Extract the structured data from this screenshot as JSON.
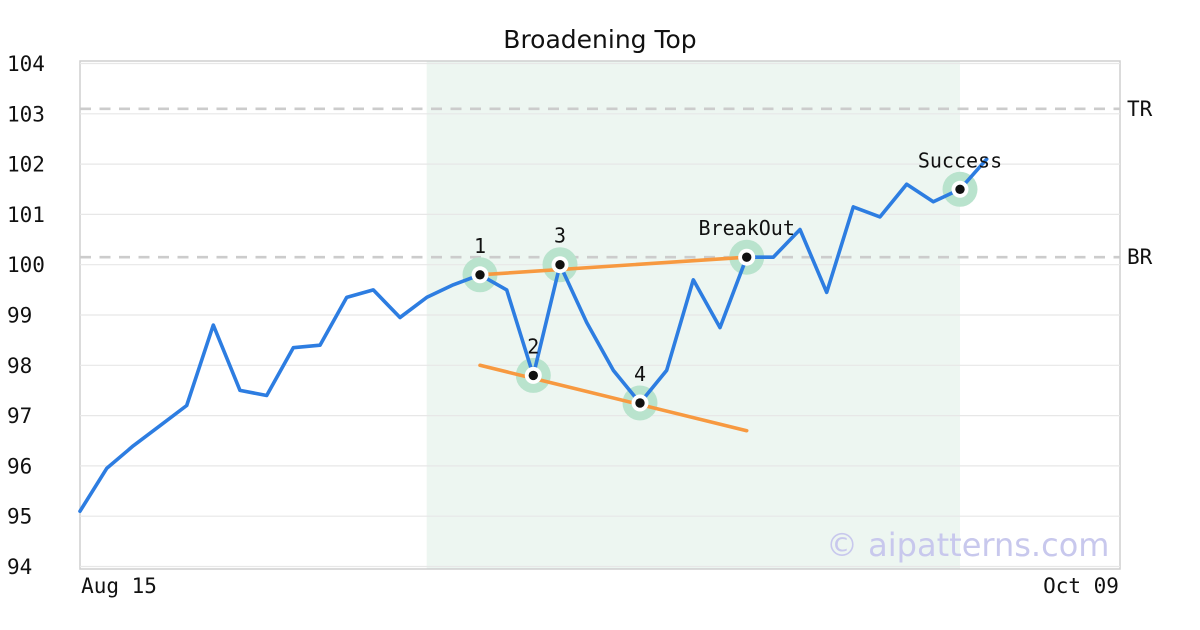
{
  "chart_data": {
    "type": "line",
    "title": "Broadening Top",
    "xlabel": "",
    "ylabel": "",
    "x_tick_labels": [
      "Aug 15",
      "Oct 09"
    ],
    "y_ticks": [
      94,
      95,
      96,
      97,
      98,
      99,
      100,
      101,
      102,
      103,
      104
    ],
    "ylim": [
      93.95,
      104.05
    ],
    "grid": true,
    "legend": "none",
    "n_slots": 39,
    "values": [
      95.1,
      95.95,
      96.4,
      96.8,
      97.2,
      98.8,
      97.5,
      97.4,
      98.35,
      98.4,
      99.35,
      99.5,
      98.95,
      99.35,
      99.6,
      99.8,
      99.5,
      97.8,
      100.0,
      98.85,
      97.9,
      97.25,
      97.9,
      99.7,
      98.75,
      100.15,
      100.15,
      100.7,
      99.45,
      101.15,
      100.95,
      101.6,
      101.25,
      101.5,
      102.1
    ],
    "markers": [
      {
        "idx": 15,
        "label": "1"
      },
      {
        "idx": 17,
        "label": "2"
      },
      {
        "idx": 18,
        "label": "3"
      },
      {
        "idx": 21,
        "label": "4"
      },
      {
        "idx": 25,
        "label": "BreakOut"
      },
      {
        "idx": 33,
        "label": "Success"
      }
    ],
    "trendlines": [
      {
        "name": "upper-broadening-trendline",
        "from_idx": 15,
        "from_value": 99.8,
        "to_idx": 25,
        "to_value": 100.15
      },
      {
        "name": "lower-broadening-trendline",
        "from_idx": 15,
        "from_value": 98.0,
        "to_idx": 25,
        "to_value": 96.7
      }
    ],
    "levels": [
      {
        "label": "TR",
        "value": 103.1
      },
      {
        "label": "BR",
        "value": 100.15
      }
    ],
    "shade": {
      "from_idx": 13,
      "to_idx": 33
    },
    "watermark": "© aipatterns.com",
    "colors": {
      "price_line": "#2d7de1",
      "trend_line": "#f79940",
      "shade": "#edf6f1",
      "marker_halo": "#b9e3cd",
      "marker_ring": "#ffffff",
      "marker_dot": "#111111",
      "dashed_level": "#cccccc",
      "gridline": "#e7e7e7",
      "spine": "#cfcfcf",
      "text": "#111111",
      "watermark": "#c8c8ed"
    }
  }
}
